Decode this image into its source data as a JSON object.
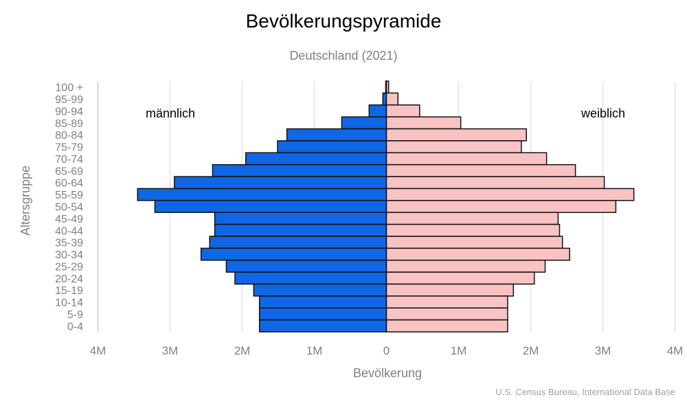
{
  "chart_data": {
    "type": "bar",
    "orientation": "horizontal-population-pyramid",
    "title": "Bevölkerungspyramide",
    "subtitle": "Deutschland (2021)",
    "xlabel": "Bevölkerung",
    "ylabel": "Altersgruppe",
    "source": "U.S. Census Bureau, International Data Base",
    "xlim": [
      -4000000,
      4000000
    ],
    "x_ticks": [
      {
        "value": -4000000,
        "label": "4M"
      },
      {
        "value": -3000000,
        "label": "3M"
      },
      {
        "value": -2000000,
        "label": "2M"
      },
      {
        "value": -1000000,
        "label": "1M"
      },
      {
        "value": 0,
        "label": "0"
      },
      {
        "value": 1000000,
        "label": "1M"
      },
      {
        "value": 2000000,
        "label": "2M"
      },
      {
        "value": 3000000,
        "label": "3M"
      },
      {
        "value": 4000000,
        "label": "4M"
      }
    ],
    "grid": true,
    "categories": [
      "100 +",
      "95-99",
      "90-94",
      "85-89",
      "80-84",
      "75-79",
      "70-74",
      "65-69",
      "60-64",
      "55-59",
      "50-54",
      "45-49",
      "40-44",
      "35-39",
      "30-34",
      "25-29",
      "20-24",
      "15-19",
      "10-14",
      "5-9",
      "0-4"
    ],
    "series": [
      {
        "name": "männlich",
        "color": "#0f67e6",
        "values": [
          10000,
          50000,
          240000,
          620000,
          1380000,
          1510000,
          1950000,
          2410000,
          2940000,
          3450000,
          3210000,
          2380000,
          2380000,
          2450000,
          2570000,
          2220000,
          2100000,
          1840000,
          1760000,
          1760000,
          1760000
        ]
      },
      {
        "name": "weiblich",
        "color": "#f9c3c3",
        "values": [
          30000,
          160000,
          460000,
          1030000,
          1940000,
          1870000,
          2220000,
          2620000,
          3020000,
          3430000,
          3180000,
          2380000,
          2400000,
          2440000,
          2540000,
          2200000,
          2050000,
          1760000,
          1680000,
          1680000,
          1680000
        ]
      }
    ]
  }
}
